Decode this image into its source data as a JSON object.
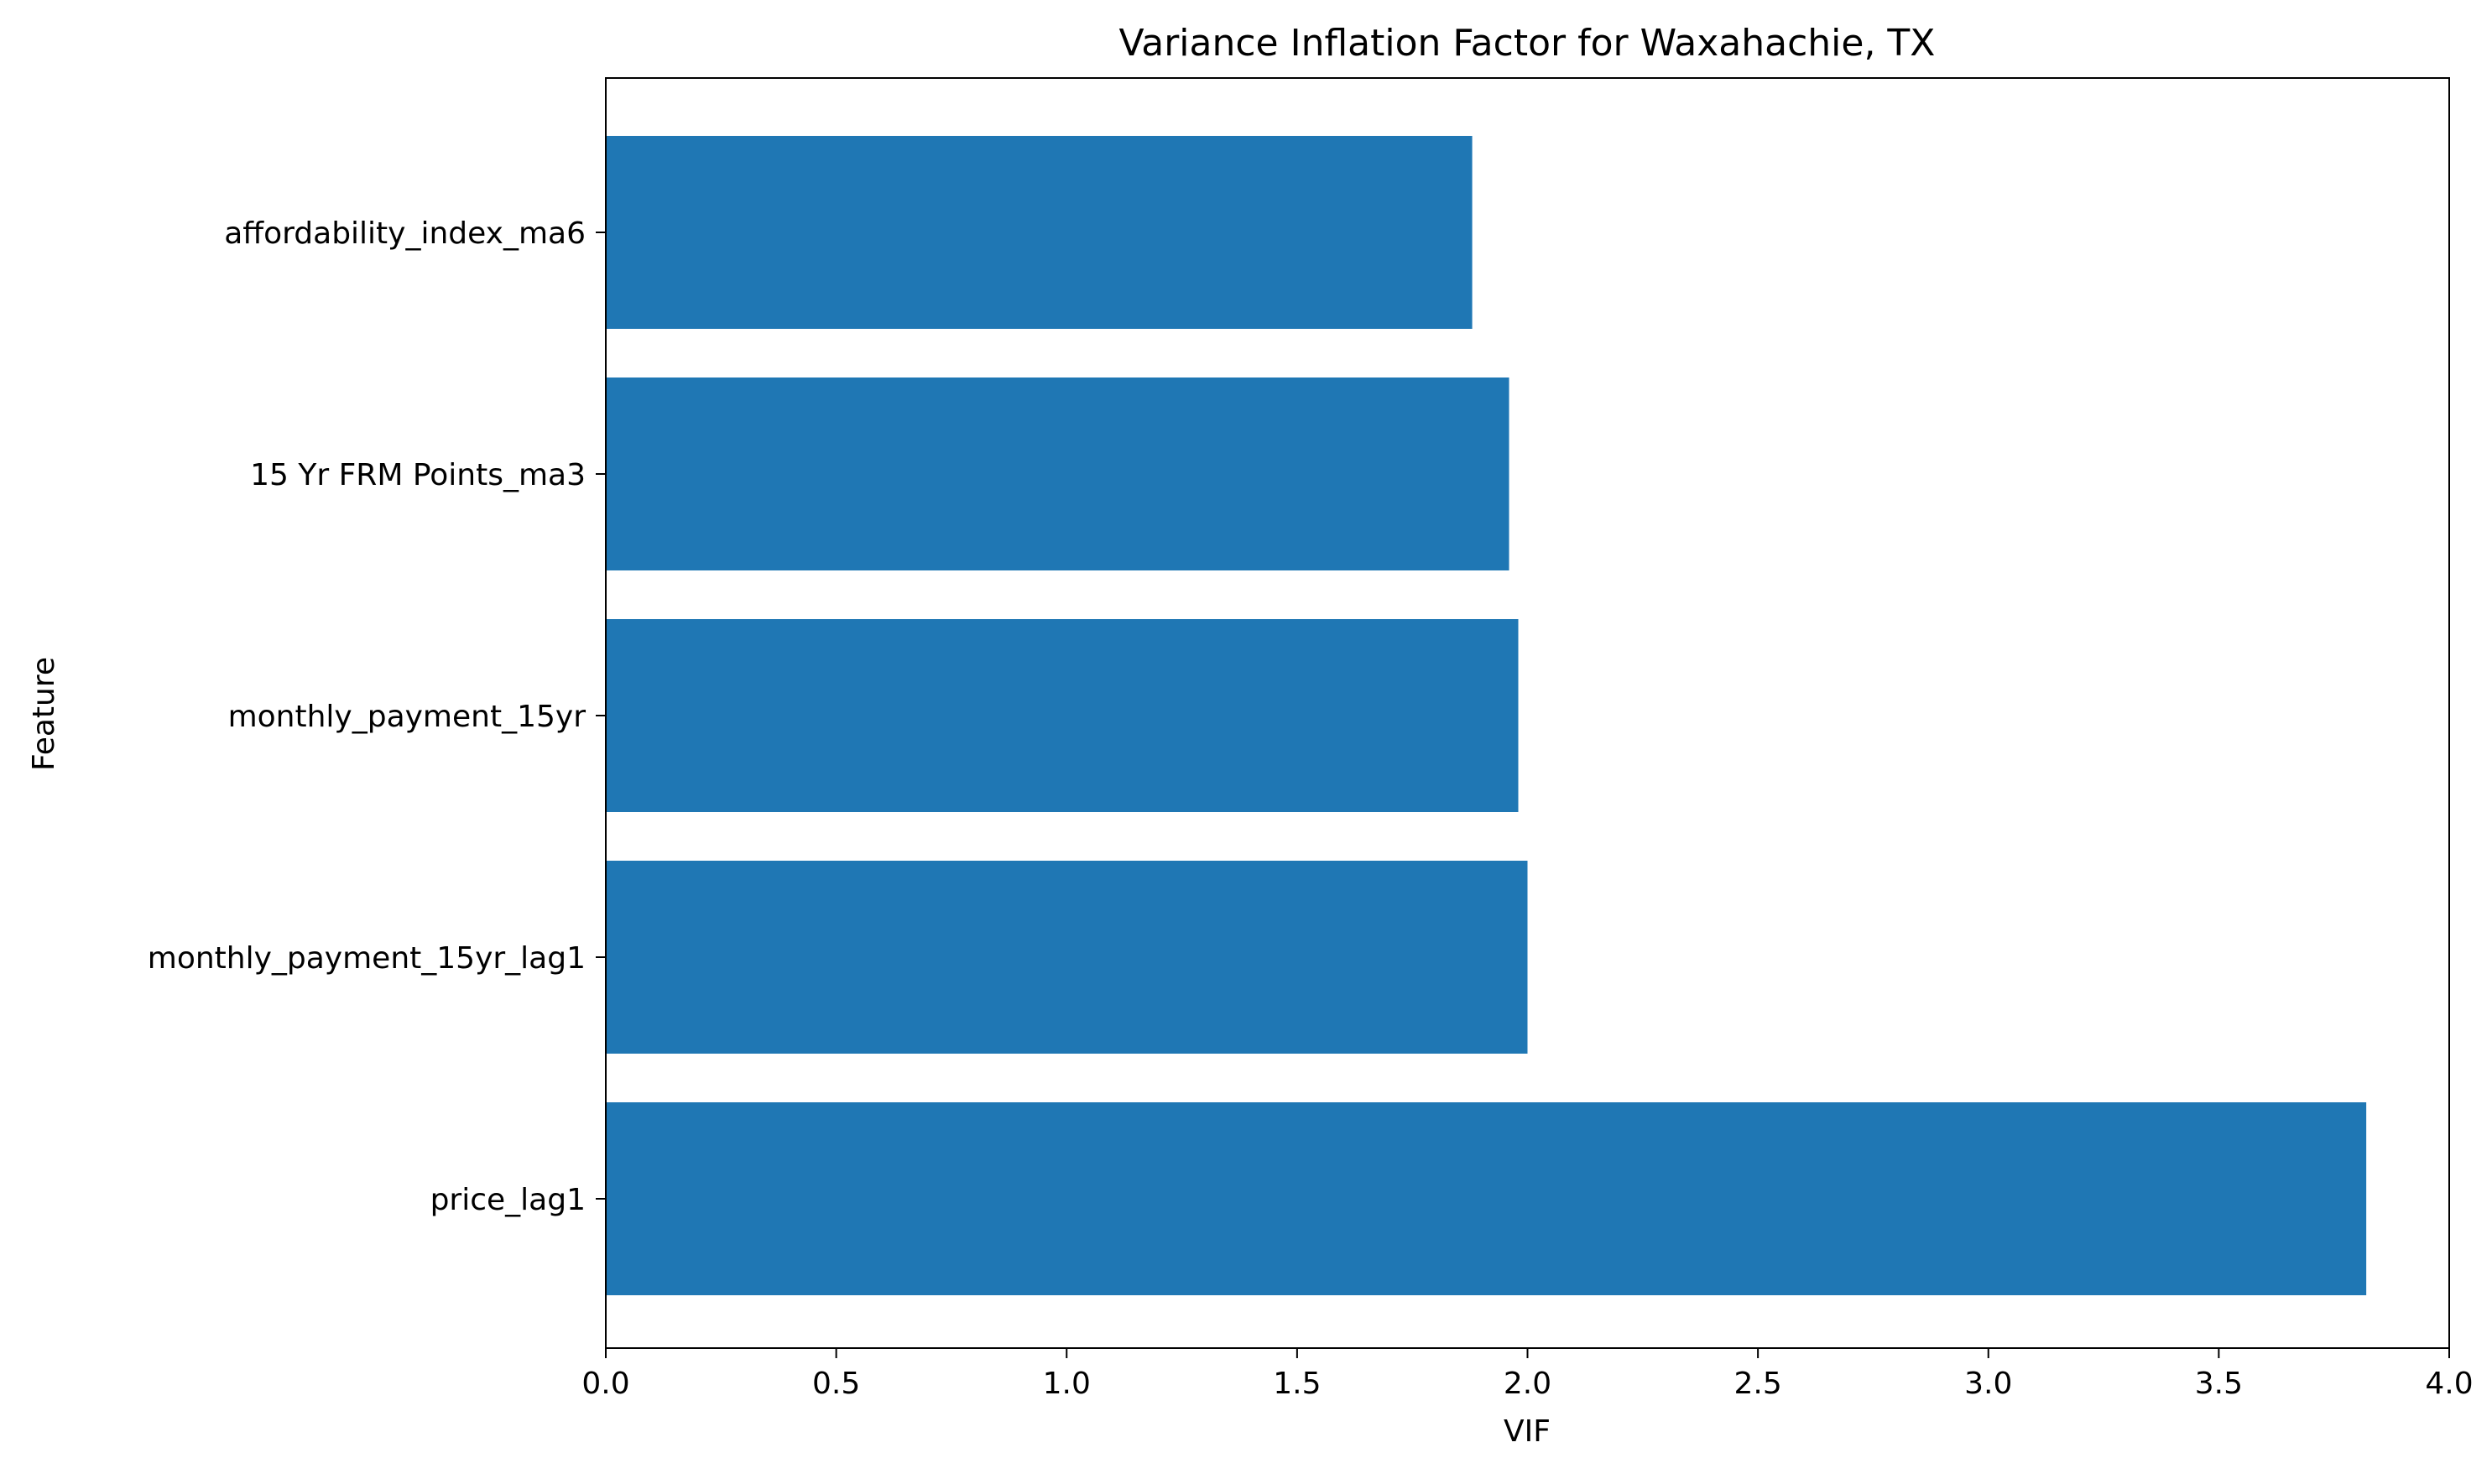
{
  "chart_data": {
    "type": "bar",
    "orientation": "horizontal",
    "title": "Variance Inflation Factor for Waxahachie, TX",
    "xlabel": "VIF",
    "ylabel": "Feature",
    "categories": [
      "affordability_index_ma6",
      "15 Yr FRM Points_ma3",
      "monthly_payment_15yr",
      "monthly_payment_15yr_lag1",
      "price_lag1"
    ],
    "values": [
      1.88,
      1.96,
      1.98,
      2.0,
      3.82
    ],
    "xlim": [
      0.0,
      4.0
    ],
    "xticks": [
      0.0,
      0.5,
      1.0,
      1.5,
      2.0,
      2.5,
      3.0,
      3.5,
      4.0
    ],
    "xtick_labels": [
      "0.0",
      "0.5",
      "1.0",
      "1.5",
      "2.0",
      "2.5",
      "3.0",
      "3.5",
      "4.0"
    ],
    "bar_color": "#1f77b4",
    "grid": false,
    "legend": "none"
  }
}
